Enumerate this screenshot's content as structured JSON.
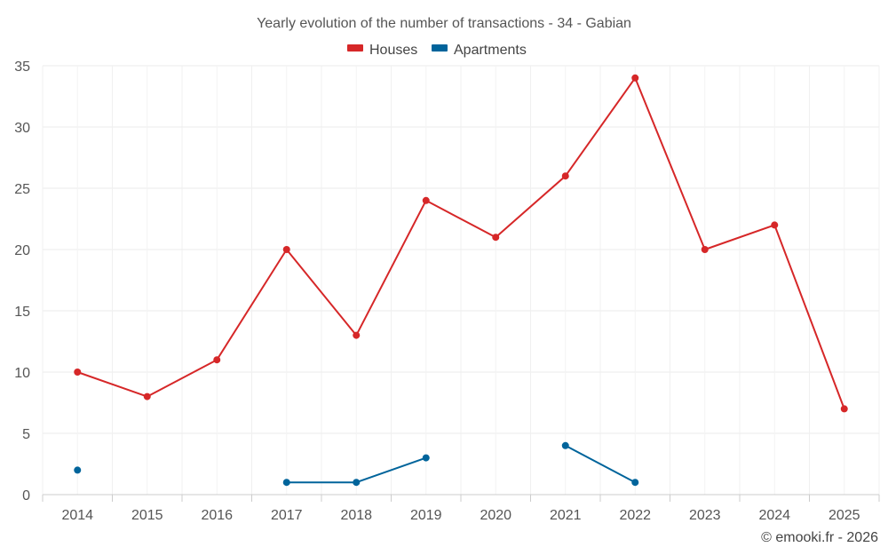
{
  "chart_data": {
    "type": "line",
    "title": "Yearly evolution of the number of transactions - 34 - Gabian",
    "xlabel": "",
    "ylabel": "",
    "x": [
      "2014",
      "2015",
      "2016",
      "2017",
      "2018",
      "2019",
      "2020",
      "2021",
      "2022",
      "2023",
      "2024",
      "2025"
    ],
    "ylim": [
      0,
      35
    ],
    "yticks": [
      0,
      5,
      10,
      15,
      20,
      25,
      30,
      35
    ],
    "grid": true,
    "legend_position": "top-center",
    "series": [
      {
        "name": "Houses",
        "color": "#d62728",
        "values": [
          10,
          8,
          11,
          20,
          13,
          24,
          21,
          26,
          34,
          20,
          22,
          7
        ]
      },
      {
        "name": "Apartments",
        "color": "#00649b",
        "values": [
          2,
          null,
          null,
          1,
          1,
          3,
          null,
          4,
          1,
          null,
          null,
          null
        ]
      }
    ]
  },
  "credit": "© emooki.fr - 2026"
}
